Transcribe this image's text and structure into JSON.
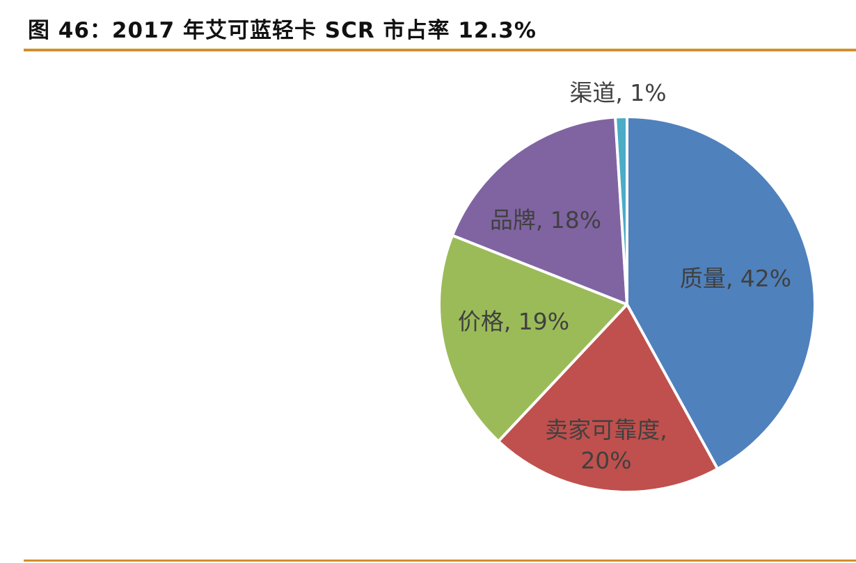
{
  "title": "图 46：2017 年艾可蓝轻卡 SCR 市占率 12.3%",
  "colors": {
    "rule": "#D18F2C"
  },
  "chart_data": {
    "type": "pie",
    "slices": [
      {
        "label": "质量",
        "value": 42,
        "label_text": [
          "质量, 42%"
        ],
        "color": "#4F81BD"
      },
      {
        "label": "卖家可靠度",
        "value": 20,
        "label_text": [
          "卖家可靠度,",
          "20%"
        ],
        "color": "#C0504D"
      },
      {
        "label": "价格",
        "value": 19,
        "label_text": [
          "价格, 19%"
        ],
        "color": "#9BBB59"
      },
      {
        "label": "品牌",
        "value": 18,
        "label_text": [
          "品牌, 18%"
        ],
        "color": "#8064A2"
      },
      {
        "label": "渠道",
        "value": 1,
        "label_text": [
          "渠道, 1%"
        ],
        "color": "#4BACC6"
      }
    ]
  }
}
